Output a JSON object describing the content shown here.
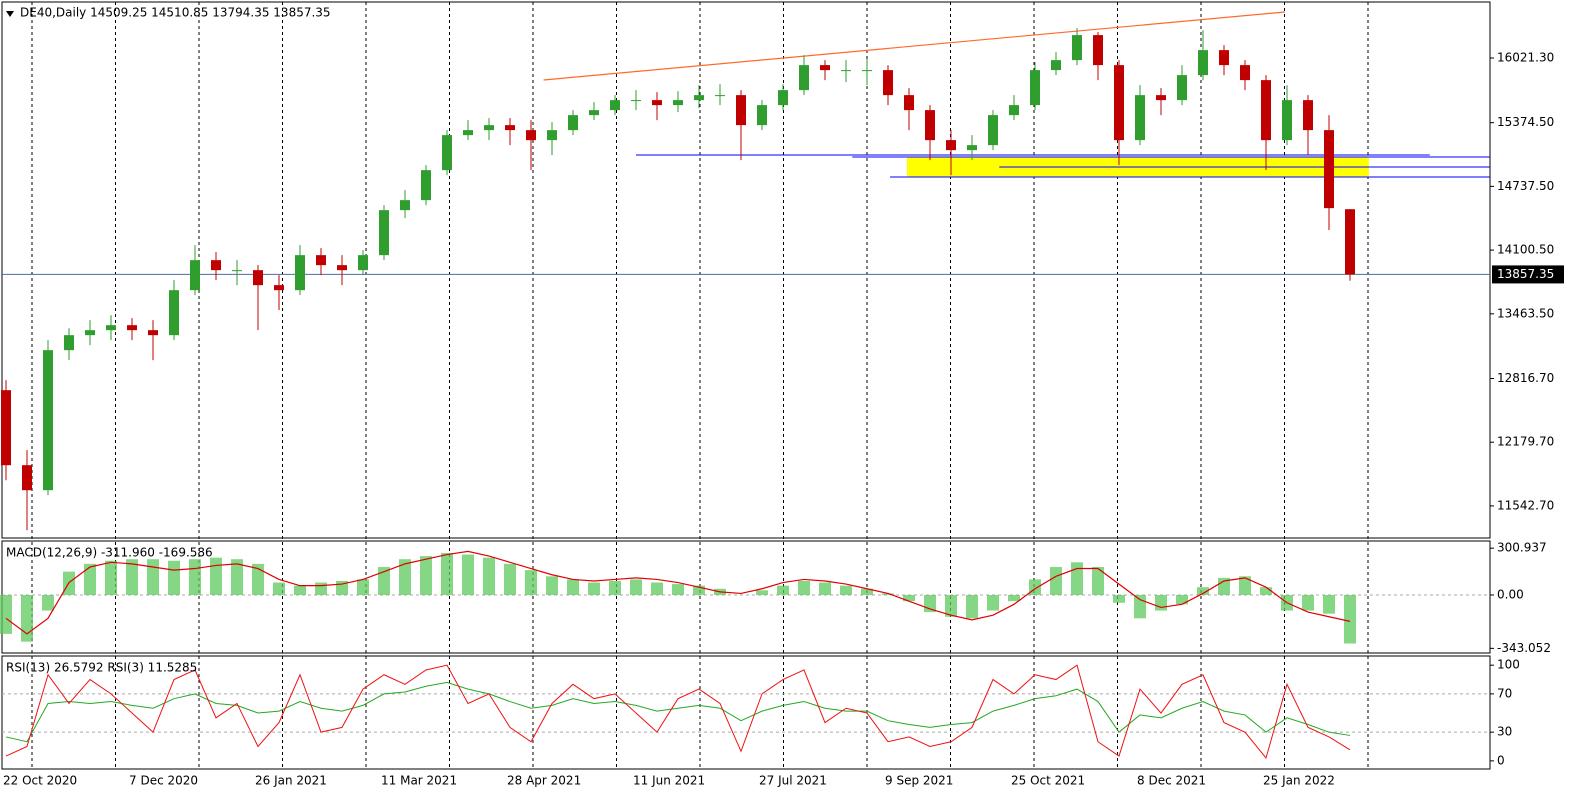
{
  "chart_data": [
    {
      "type": "candlestick",
      "title": "DE40,Daily  14509.25 14510.85 13794.35 13857.35",
      "categories": [
        "22 Oct 2020",
        null,
        null,
        null,
        null,
        null,
        "7 Dec 2020",
        null,
        null,
        null,
        null,
        null,
        "26 Jan 2021",
        null,
        null,
        null,
        null,
        null,
        "11 Mar 2021",
        null,
        null,
        null,
        null,
        null,
        "28 Apr 2021",
        null,
        null,
        null,
        null,
        null,
        "11 Jun 2021",
        null,
        null,
        null,
        null,
        null,
        "27 Jul 2021",
        null,
        null,
        null,
        null,
        null,
        "9 Sep 2021",
        null,
        null,
        null,
        null,
        null,
        "25 Oct 2021",
        null,
        null,
        null,
        null,
        null,
        "8 Dec 2021",
        null,
        null,
        null,
        null,
        null,
        "25 Jan 2022",
        null,
        null,
        null,
        null
      ],
      "open": [
        12700,
        11950,
        11700,
        13100,
        13250,
        13300,
        13350,
        13300,
        13250,
        13700,
        14000,
        13900,
        13900,
        13750,
        13700,
        14050,
        13950,
        13900,
        14050,
        14500,
        14600,
        14900,
        15250,
        15300,
        15350,
        15300,
        15200,
        15300,
        15450,
        15500,
        15600,
        15600,
        15550,
        15600,
        15650,
        15650,
        15350,
        15550,
        15700,
        15950,
        15900,
        15900,
        15900,
        15650,
        15500,
        15200,
        15100,
        15150,
        15450,
        15550,
        15900,
        16000,
        16250,
        15950,
        15200,
        15650,
        15600,
        15850,
        16100,
        15950,
        15800,
        15200,
        15600,
        15300,
        14509.25
      ],
      "high": [
        12800,
        12100,
        13200,
        13320,
        13400,
        13450,
        13420,
        13400,
        13800,
        14150,
        14080,
        14000,
        13950,
        13850,
        14150,
        14120,
        14050,
        14100,
        14550,
        14700,
        14950,
        15300,
        15400,
        15420,
        15420,
        15400,
        15380,
        15500,
        15580,
        15650,
        15700,
        15680,
        15690,
        15750,
        15760,
        15700,
        15600,
        15760,
        16050,
        16000,
        16000,
        16010,
        15950,
        15720,
        15550,
        15300,
        15250,
        15500,
        15650,
        15980,
        16080,
        16320,
        16280,
        16000,
        15750,
        15720,
        15950,
        16300,
        16150,
        16000,
        15850,
        15750,
        15650,
        15450,
        14510.85
      ],
      "low": [
        11800,
        11300,
        11650,
        13000,
        13150,
        13200,
        13200,
        13000,
        13200,
        13650,
        13800,
        13750,
        13300,
        13500,
        13650,
        13850,
        13750,
        13850,
        14000,
        14420,
        14550,
        14850,
        15200,
        15200,
        15150,
        14900,
        15050,
        15250,
        15400,
        15450,
        15500,
        15400,
        15480,
        15520,
        15550,
        15000,
        15300,
        15500,
        15650,
        15800,
        15780,
        15750,
        15550,
        15300,
        15000,
        14850,
        15000,
        15100,
        15400,
        15500,
        15850,
        15950,
        15800,
        14950,
        15150,
        15450,
        15550,
        15800,
        15850,
        15700,
        14900,
        15150,
        15050,
        14300,
        13794.35
      ],
      "close": [
        11950,
        11700,
        13100,
        13250,
        13300,
        13350,
        13300,
        13250,
        13700,
        14000,
        13900,
        13900,
        13750,
        13700,
        14050,
        13950,
        13900,
        14050,
        14500,
        14600,
        14900,
        15250,
        15300,
        15350,
        15300,
        15200,
        15300,
        15450,
        15500,
        15600,
        15600,
        15550,
        15600,
        15650,
        15650,
        15350,
        15550,
        15700,
        15950,
        15900,
        15900,
        15900,
        15650,
        15500,
        15200,
        15100,
        15150,
        15450,
        15550,
        15900,
        16000,
        16250,
        15950,
        15200,
        15650,
        15600,
        15850,
        16100,
        15950,
        15800,
        15200,
        15600,
        15300,
        14520,
        13857.35
      ],
      "up_color": "#2f9e2f",
      "down_color": "#c00000",
      "price_line_color": "#4a6fa5",
      "ylim": [
        11222,
        16581
      ],
      "yticks": [
        {
          "value": 16021.3,
          "label": "16021.30"
        },
        {
          "value": 15374.5,
          "label": "15374.50"
        },
        {
          "value": 14737.5,
          "label": "14737.50"
        },
        {
          "value": 14100.5,
          "label": "14100.50"
        },
        {
          "value": 13463.5,
          "label": "13463.50"
        },
        {
          "value": 12816.7,
          "label": "12816.70"
        },
        {
          "value": 12179.7,
          "label": "12179.70"
        },
        {
          "value": 11542.7,
          "label": "11542.70"
        }
      ],
      "trendline": {
        "color": "#ff6a2a",
        "x": [
          25.6,
          60.9
        ],
        "y": [
          15801,
          16481
        ]
      },
      "zone": {
        "color": "#ffff00",
        "x": [
          42.9,
          64.9
        ],
        "y": [
          14831,
          15031
        ]
      },
      "hlines": [
        {
          "color": "#0000ff",
          "y": 15051,
          "x": [
            30,
            67.8
          ]
        },
        {
          "color": "#0000ff",
          "y": 15031,
          "x": [
            40.3,
            70.7
          ]
        },
        {
          "color": "#0000ff",
          "y": 14931,
          "x": [
            47.3,
            70.7
          ]
        },
        {
          "color": "#0000ff",
          "y": 14831,
          "x": [
            42.1,
            70.7
          ]
        }
      ]
    },
    {
      "type": "macd",
      "title": "MACD(12,26,9) -311.960 -169.586",
      "histogram": {
        "color": "#5cc85c",
        "values": [
          -250,
          -300,
          -100,
          150,
          200,
          220,
          230,
          230,
          220,
          230,
          240,
          230,
          200,
          80,
          60,
          80,
          90,
          100,
          180,
          230,
          250,
          270,
          260,
          240,
          200,
          160,
          120,
          100,
          80,
          90,
          100,
          80,
          70,
          60,
          40,
          0,
          30,
          60,
          90,
          80,
          60,
          40,
          10,
          -40,
          -110,
          -140,
          -150,
          -100,
          -40,
          100,
          180,
          210,
          180,
          -50,
          -150,
          -100,
          -60,
          50,
          110,
          120,
          50,
          -100,
          -100,
          -120,
          -311.96
        ]
      },
      "signal": {
        "color": "#e00000",
        "values": [
          -150,
          -250,
          -150,
          80,
          180,
          210,
          200,
          180,
          160,
          170,
          190,
          200,
          170,
          100,
          60,
          60,
          70,
          100,
          150,
          200,
          230,
          260,
          280,
          250,
          210,
          170,
          130,
          100,
          90,
          100,
          110,
          100,
          80,
          50,
          20,
          10,
          40,
          80,
          100,
          90,
          70,
          40,
          10,
          -40,
          -90,
          -130,
          -160,
          -130,
          -60,
          40,
          120,
          170,
          170,
          70,
          -30,
          -80,
          -60,
          10,
          90,
          110,
          50,
          -50,
          -110,
          -140,
          -169.586
        ]
      },
      "ylim": [
        -373,
        347
      ],
      "yticks": [
        {
          "value": 300.937,
          "label": "300.937"
        },
        {
          "value": 0,
          "label": "0.00"
        },
        {
          "value": -343.052,
          "label": "-343.052"
        }
      ]
    },
    {
      "type": "rsi",
      "title": "RSI(13) 26.5792  RSI(3) 11.5285",
      "series": [
        {
          "color": "#22aa22",
          "values": [
            25,
            20,
            60,
            62,
            60,
            62,
            58,
            55,
            65,
            70,
            60,
            58,
            50,
            52,
            62,
            55,
            52,
            58,
            70,
            72,
            78,
            82,
            75,
            70,
            62,
            55,
            58,
            65,
            60,
            62,
            58,
            52,
            55,
            58,
            55,
            42,
            52,
            58,
            62,
            55,
            52,
            52,
            42,
            38,
            35,
            38,
            40,
            52,
            58,
            65,
            68,
            75,
            62,
            30,
            48,
            45,
            55,
            62,
            52,
            48,
            30,
            45,
            38,
            30,
            26.5792
          ]
        },
        {
          "color": "#ee1111",
          "values": [
            5,
            15,
            90,
            60,
            85,
            70,
            50,
            30,
            85,
            95,
            45,
            60,
            15,
            40,
            90,
            30,
            35,
            75,
            90,
            80,
            95,
            100,
            60,
            70,
            35,
            20,
            60,
            80,
            65,
            70,
            50,
            30,
            65,
            75,
            60,
            10,
            70,
            85,
            95,
            40,
            55,
            50,
            20,
            25,
            15,
            20,
            35,
            85,
            70,
            90,
            85,
            100,
            20,
            5,
            75,
            50,
            80,
            90,
            40,
            30,
            3,
            80,
            35,
            25,
            11.5285
          ]
        }
      ],
      "levels": [
        70,
        30
      ],
      "ylim": [
        -8.5,
        109.6
      ],
      "yticks": [
        100,
        70,
        30,
        0
      ]
    }
  ]
}
